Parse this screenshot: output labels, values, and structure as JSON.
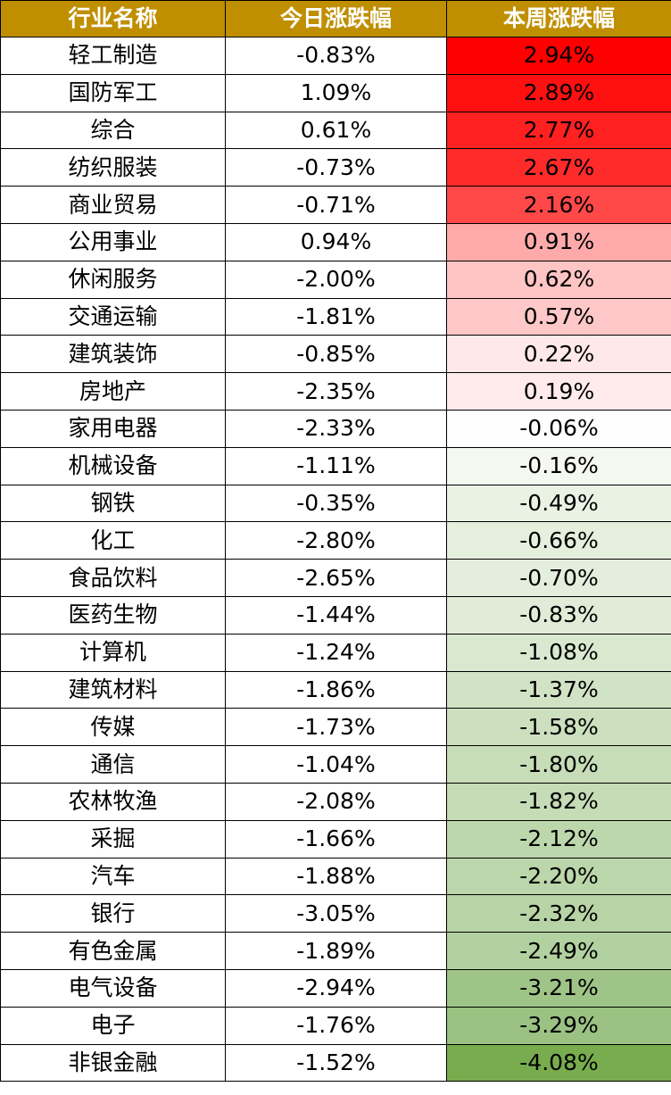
{
  "table": {
    "header": [
      "行业名称",
      "今日涨跌幅",
      "本周涨跌幅"
    ],
    "header_color": "#bf8f00",
    "rows": [
      [
        "轻工制造",
        "-0.83%",
        "2.94%"
      ],
      [
        "国防军工",
        "1.09%",
        "2.89%"
      ],
      [
        "综合",
        "0.61%",
        "2.77%"
      ],
      [
        "纺织服装",
        "-0.73%",
        "2.67%"
      ],
      [
        "商业贸易",
        "-0.71%",
        "2.16%"
      ],
      [
        "公用事业",
        "0.94%",
        "0.91%"
      ],
      [
        "休闲服务",
        "-2.00%",
        "0.62%"
      ],
      [
        "交通运输",
        "-1.81%",
        "0.57%"
      ],
      [
        "建筑装饰",
        "-0.85%",
        "0.22%"
      ],
      [
        "房地产",
        "-2.35%",
        "0.19%"
      ],
      [
        "家用电器",
        "-2.33%",
        "-0.06%"
      ],
      [
        "机械设备",
        "-1.11%",
        "-0.16%"
      ],
      [
        "钢铁",
        "-0.35%",
        "-0.49%"
      ],
      [
        "化工",
        "-2.80%",
        "-0.66%"
      ],
      [
        "食品饮料",
        "-2.65%",
        "-0.70%"
      ],
      [
        "医药生物",
        "-1.44%",
        "-0.83%"
      ],
      [
        "计算机",
        "-1.24%",
        "-1.08%"
      ],
      [
        "建筑材料",
        "-1.86%",
        "-1.37%"
      ],
      [
        "传媒",
        "-1.73%",
        "-1.58%"
      ],
      [
        "通信",
        "-1.04%",
        "-1.80%"
      ],
      [
        "农林牧渔",
        "-2.08%",
        "-1.82%"
      ],
      [
        "采掘",
        "-1.66%",
        "-2.12%"
      ],
      [
        "汽车",
        "-1.88%",
        "-2.20%"
      ],
      [
        "银行",
        "-3.05%",
        "-2.32%"
      ],
      [
        "有色金属",
        "-1.89%",
        "-2.49%"
      ],
      [
        "电气设备",
        "-2.94%",
        "-3.21%"
      ],
      [
        "电子",
        "-1.76%",
        "-3.29%"
      ],
      [
        "非银金融",
        "-1.52%",
        "-4.08%"
      ]
    ],
    "week_colors": [
      "#ff0000",
      "#ff1010",
      "#ff2020",
      "#ff2a2a",
      "#ff4848",
      "#ffaaaa",
      "#ffc4c4",
      "#ffc8c8",
      "#ffe8e8",
      "#ffebeb",
      "#fdfefd",
      "#f4f8f0",
      "#eaf2e4",
      "#e5efdd",
      "#e4eedc",
      "#e1ecd8",
      "#d9e8cf",
      "#d1e3c5",
      "#cce0bf",
      "#c6ddb8",
      "#c5dcb7",
      "#bdd7ad",
      "#bbd6ab",
      "#b8d4a7",
      "#b2d1a0",
      "#9ec487",
      "#9bc283",
      "#78ac4e"
    ]
  }
}
